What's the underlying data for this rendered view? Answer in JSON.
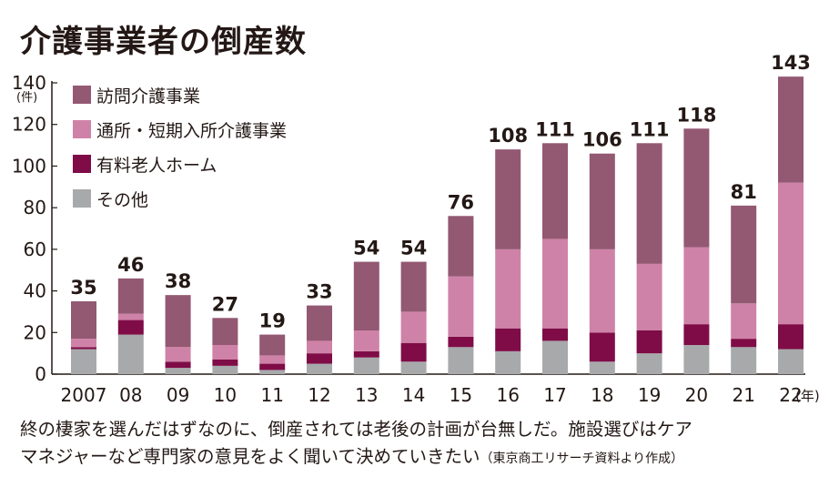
{
  "title": "介護事業者の倒産数",
  "caption_line1": "終の棲家を選んだはずなのに、倒産されては老後の計画が台無しだ。施設選びはケア",
  "caption_line2": "マネジャーなど専門家の意見をよく聞いて決めていきたい",
  "source": "（東京商工リサーチ資料より作成）",
  "chart_data": {
    "type": "bar",
    "stacked": true,
    "title": "介護事業者の倒産数",
    "xlabel": "",
    "ylabel": "",
    "y_unit": "(件)",
    "x_unit": "(年)",
    "ylim": [
      0,
      140
    ],
    "yticks": [
      0,
      20,
      40,
      60,
      80,
      100,
      120,
      140
    ],
    "grid": false,
    "legend_position": "top-left",
    "categories": [
      "2007",
      "08",
      "09",
      "10",
      "11",
      "12",
      "13",
      "14",
      "15",
      "16",
      "17",
      "18",
      "19",
      "20",
      "21",
      "22"
    ],
    "totals": [
      35,
      46,
      38,
      27,
      19,
      33,
      54,
      54,
      76,
      108,
      111,
      106,
      111,
      118,
      81,
      143
    ],
    "series": [
      {
        "name": "その他",
        "color": "#a7a9ab",
        "values": [
          12,
          19,
          3,
          4,
          2,
          5,
          8,
          6,
          13,
          11,
          16,
          6,
          10,
          14,
          13,
          12
        ]
      },
      {
        "name": "有料老人ホーム",
        "color": "#7f0c47",
        "values": [
          1,
          7,
          3,
          3,
          3,
          5,
          3,
          9,
          5,
          11,
          6,
          14,
          11,
          10,
          4,
          12
        ]
      },
      {
        "name": "通所・短期入所介護事業",
        "color": "#cf82a7",
        "values": [
          4,
          3,
          7,
          7,
          4,
          6,
          10,
          15,
          29,
          38,
          43,
          40,
          32,
          37,
          17,
          68
        ]
      },
      {
        "name": "訪問介護事業",
        "color": "#935872",
        "values": [
          18,
          17,
          25,
          13,
          10,
          17,
          33,
          24,
          29,
          48,
          46,
          46,
          58,
          57,
          47,
          51
        ]
      }
    ],
    "legend_order": [
      "訪問介護事業",
      "通所・短期入所介護事業",
      "有料老人ホーム",
      "その他"
    ]
  }
}
